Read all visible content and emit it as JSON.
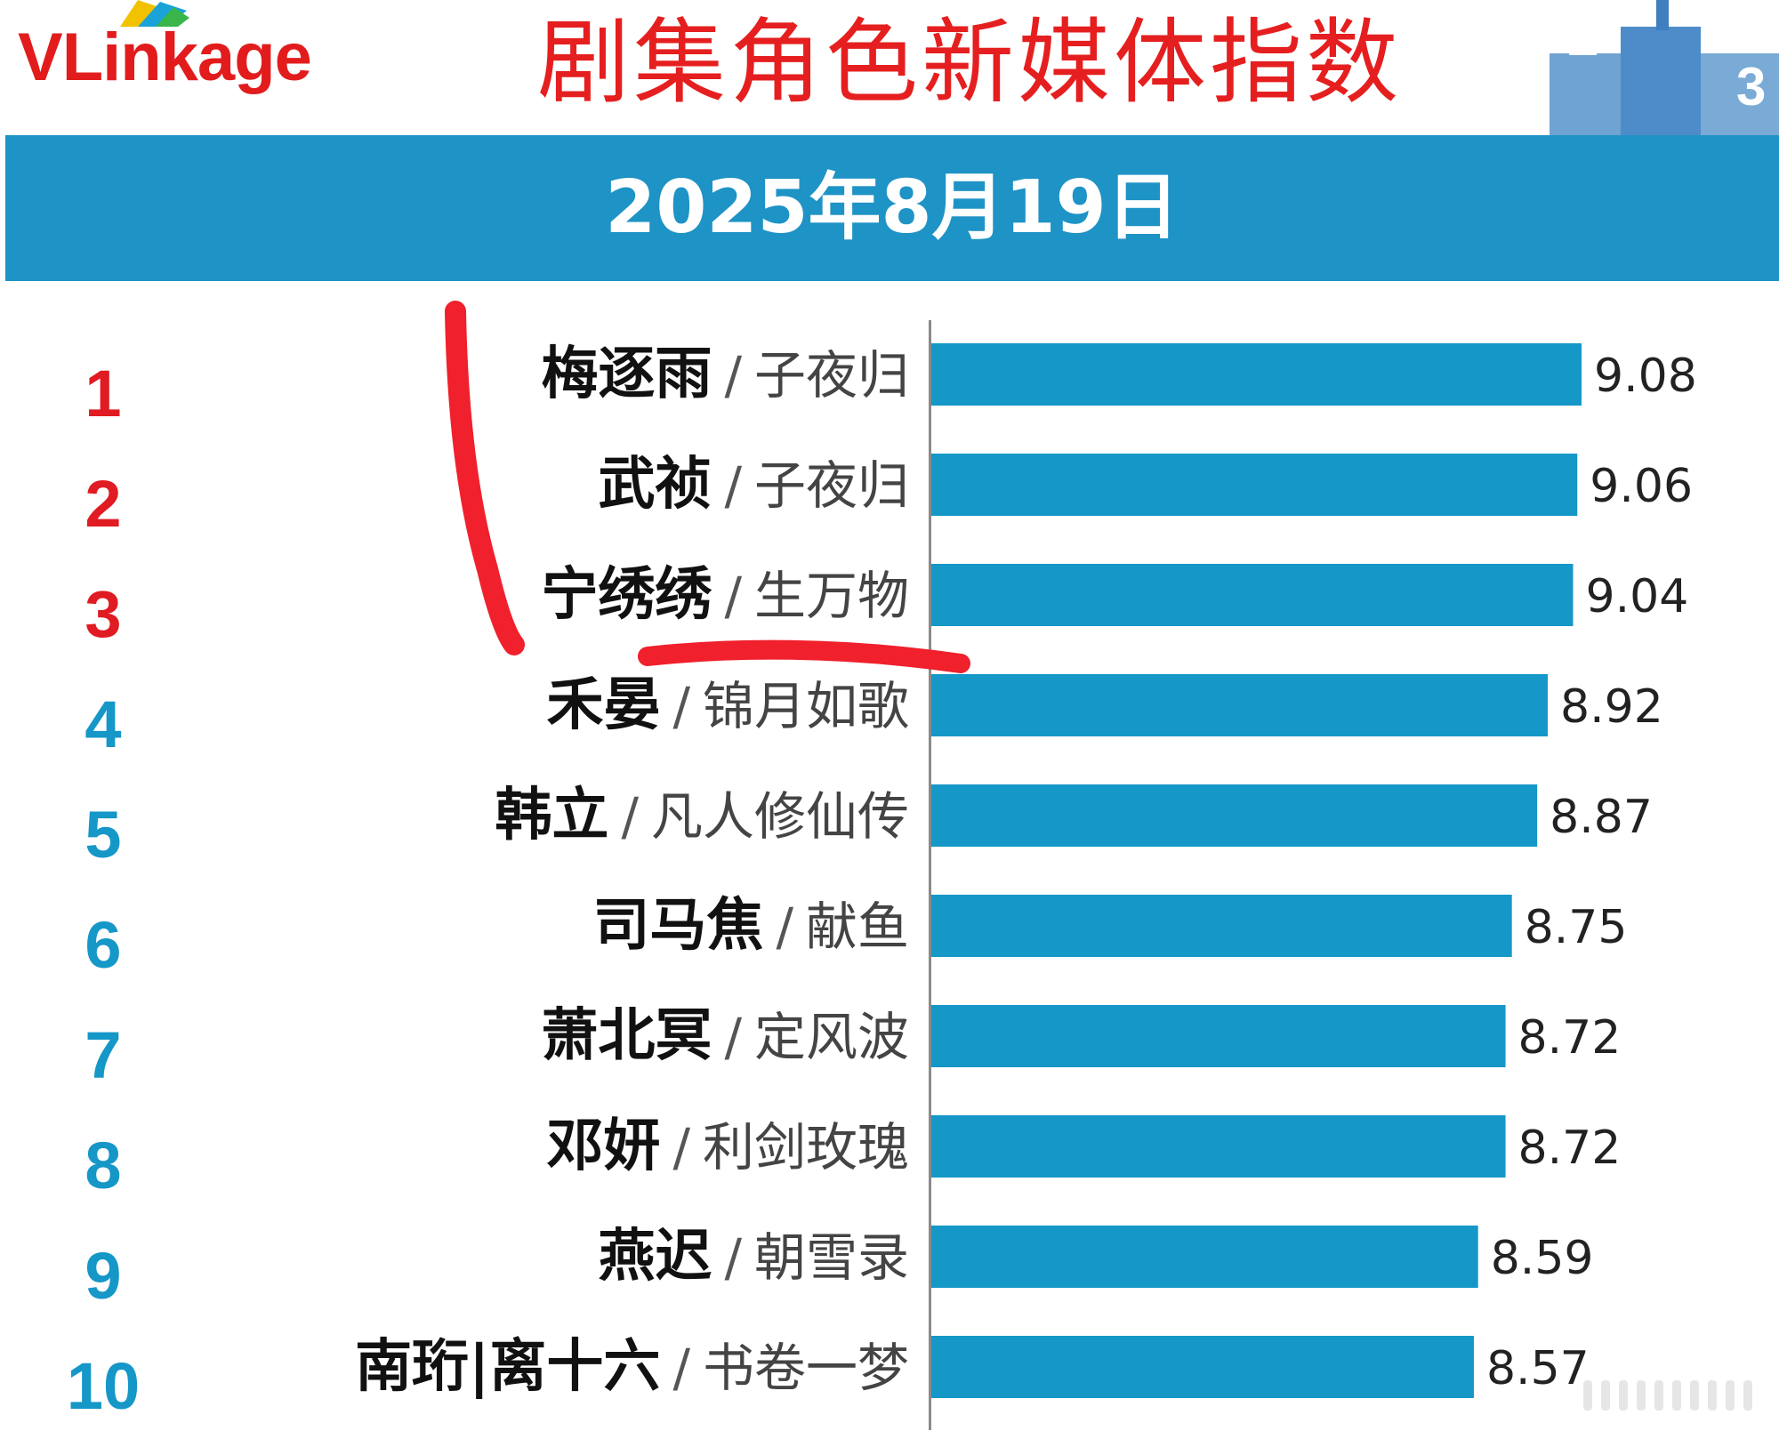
{
  "header": {
    "logo_text_red": "VLink",
    "logo_text_plain": "age",
    "title": "剧集角色新媒体指数",
    "date": "2025年8月19日",
    "podium_labels": [
      "2",
      "3"
    ]
  },
  "colors": {
    "bar": "#1597c8",
    "top_rank": "#e01b22",
    "other_rank": "#1597c8",
    "banner": "#1e93c5",
    "title": "#e51f1f",
    "annotation": "#f0202c"
  },
  "chart_data": {
    "type": "bar",
    "orientation": "horizontal",
    "title": "剧集角色新媒体指数",
    "subtitle": "2025年8月19日",
    "xlim": [
      6.0,
      9.5
    ],
    "grid": false,
    "legend": "none",
    "items": [
      {
        "rank": "1",
        "role": "梅逐雨",
        "show": "子夜归",
        "value": 9.08
      },
      {
        "rank": "2",
        "role": "武祯",
        "show": "子夜归",
        "value": 9.06
      },
      {
        "rank": "3",
        "role": "宁绣绣",
        "show": "生万物",
        "value": 9.04
      },
      {
        "rank": "4",
        "role": "禾晏",
        "show": "锦月如歌",
        "value": 8.92
      },
      {
        "rank": "5",
        "role": "韩立",
        "show": "凡人修仙传",
        "value": 8.87
      },
      {
        "rank": "6",
        "role": "司马焦",
        "show": "献鱼",
        "value": 8.75
      },
      {
        "rank": "7",
        "role": "萧北冥",
        "show": "定风波",
        "value": 8.72
      },
      {
        "rank": "8",
        "role": "邓妍",
        "show": "利剑玫瑰",
        "value": 8.72
      },
      {
        "rank": "9",
        "role": "燕迟",
        "show": "朝雪录",
        "value": 8.59
      },
      {
        "rank": "10",
        "role": "南珩|离十六",
        "show": "书卷一梦",
        "value": 8.57
      }
    ]
  }
}
